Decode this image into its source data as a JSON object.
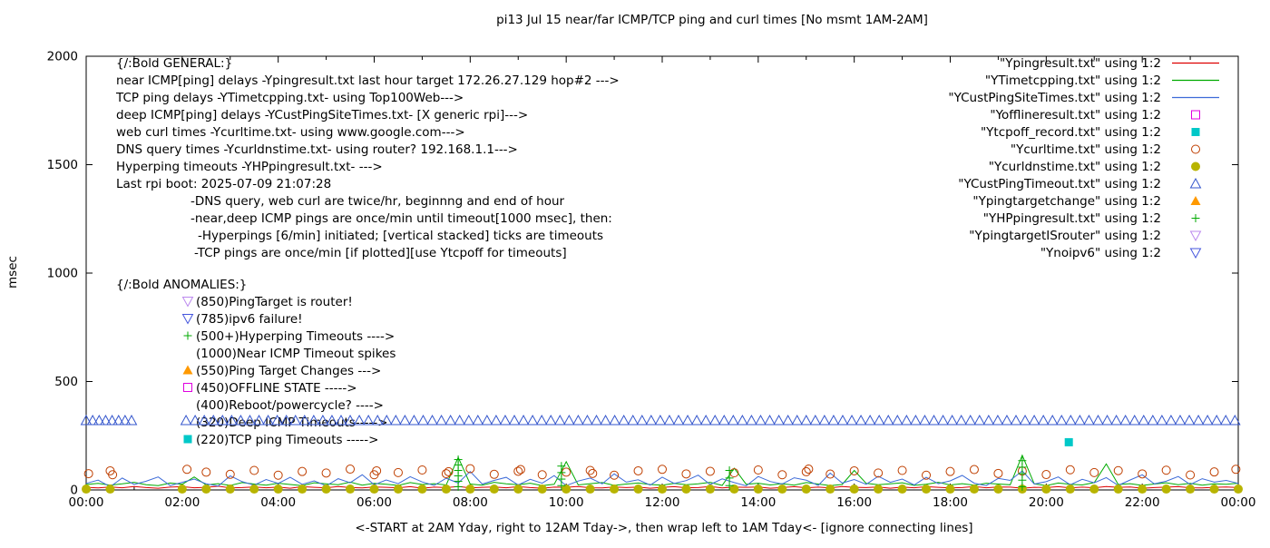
{
  "chart_data": {
    "type": "mixed",
    "title": "pi13 Jul 15  near/far ICMP/TCP ping and curl times [No msmt 1AM-2AM]",
    "xlabel": "<-START at 2AM Yday, right to 12AM Tday->, then wrap left to 1AM Tday<- [ignore connecting lines]",
    "ylabel": "msec",
    "xlim_hours": [
      0,
      24
    ],
    "ylim": [
      0,
      2000
    ],
    "y_ticks": [
      0,
      500,
      1000,
      1500,
      2000
    ],
    "x_tick_hours": [
      0,
      2,
      4,
      6,
      8,
      10,
      12,
      14,
      16,
      18,
      20,
      22,
      24
    ],
    "x_tick_labels": [
      "00:00",
      "02:00",
      "04:00",
      "06:00",
      "08:00",
      "10:00",
      "12:00",
      "14:00",
      "16:00",
      "18:00",
      "20:00",
      "22:00",
      "00:00"
    ],
    "grid": false,
    "legend_position": "top-right",
    "series": [
      {
        "name": "Ypingresult.txt",
        "type": "line",
        "color": "#dd0000",
        "values": [
          12,
          9,
          14,
          10,
          16,
          11,
          8,
          13,
          15,
          10,
          12,
          17,
          9,
          11,
          14,
          10,
          13,
          8,
          15,
          12,
          10,
          16,
          11,
          9,
          14,
          12,
          10,
          15,
          8,
          13,
          11,
          16,
          9,
          12,
          14,
          10,
          15,
          11,
          8,
          13,
          12,
          16,
          10,
          9,
          14,
          11,
          13,
          8,
          12,
          15,
          10,
          11,
          16,
          9,
          13,
          12,
          14,
          8,
          11,
          15,
          10,
          13,
          9,
          16,
          12,
          11,
          14,
          8,
          13,
          10,
          15,
          12,
          9,
          11,
          16,
          10,
          14,
          13,
          8,
          12,
          11,
          15,
          9,
          13,
          10,
          16,
          12,
          14,
          8,
          11,
          13,
          15,
          10,
          9,
          12,
          14,
          11
        ]
      },
      {
        "name": "YTimetcpping.txt",
        "type": "line",
        "color": "#00aa00",
        "values": [
          25,
          30,
          22,
          28,
          35,
          24,
          20,
          32,
          26,
          60,
          23,
          29,
          21,
          34,
          27,
          22,
          31,
          25,
          20,
          33,
          28,
          24,
          36,
          22,
          30,
          26,
          21,
          34,
          25,
          29,
          23,
          150,
          27,
          22,
          35,
          28,
          24,
          31,
          20,
          26,
          130,
          23,
          29,
          34,
          21,
          27,
          32,
          25,
          22,
          30,
          24,
          28,
          35,
          21,
          100,
          26,
          31,
          23,
          29,
          22,
          34,
          27,
          20,
          25,
          90,
          30,
          24,
          28,
          33,
          21,
          26,
          35,
          23,
          29,
          22,
          31,
          27,
          24,
          160,
          28,
          20,
          32,
          26,
          23,
          34,
          120,
          25,
          29,
          21,
          27,
          33,
          24,
          30,
          22,
          28,
          26,
          31
        ]
      },
      {
        "name": "YCustPingSiteTimes.txt",
        "type": "line",
        "color": "#3d6bd8",
        "values": [
          30,
          45,
          15,
          55,
          25,
          40,
          60,
          20,
          35,
          50,
          28,
          18,
          65,
          38,
          22,
          48,
          30,
          58,
          26,
          42,
          19,
          52,
          33,
          70,
          24,
          46,
          29,
          61,
          37,
          21,
          54,
          32,
          85,
          27,
          44,
          58,
          23,
          49,
          31,
          66,
          20,
          41,
          55,
          28,
          74,
          36,
          47,
          22,
          59,
          30,
          43,
          68,
          25,
          51,
          34,
          19,
          62,
          39,
          27,
          56,
          45,
          21,
          78,
          32,
          48,
          26,
          63,
          35,
          50,
          23,
          58,
          29,
          42,
          67,
          31,
          20,
          53,
          44,
          88,
          27,
          38,
          60,
          24,
          49,
          33,
          57,
          21,
          46,
          70,
          28,
          40,
          62,
          25,
          52,
          36,
          44,
          30
        ]
      },
      {
        "name": "Yofflineresult.txt",
        "type": "points",
        "marker": "square-open",
        "color": "#e000e0",
        "points": []
      },
      {
        "name": "Ytcpoff_record.txt",
        "type": "points",
        "marker": "square-filled",
        "color": "#00c8c8",
        "points": [
          [
            20.47,
            220
          ]
        ]
      },
      {
        "name": "Ycurltime.txt",
        "type": "points",
        "marker": "circle-open",
        "color": "#bf3f00",
        "points": [
          [
            0.05,
            75
          ],
          [
            0.5,
            88
          ],
          [
            0.55,
            70
          ],
          [
            2.1,
            95
          ],
          [
            2.5,
            82
          ],
          [
            3.0,
            72
          ],
          [
            3.5,
            90
          ],
          [
            4.0,
            68
          ],
          [
            4.5,
            85
          ],
          [
            5.0,
            78
          ],
          [
            5.5,
            96
          ],
          [
            6.0,
            70
          ],
          [
            6.05,
            88
          ],
          [
            6.5,
            80
          ],
          [
            7.0,
            92
          ],
          [
            7.5,
            75
          ],
          [
            7.55,
            84
          ],
          [
            8.0,
            98
          ],
          [
            8.5,
            72
          ],
          [
            9.0,
            86
          ],
          [
            9.05,
            94
          ],
          [
            9.5,
            70
          ],
          [
            10.0,
            82
          ],
          [
            10.5,
            90
          ],
          [
            10.55,
            76
          ],
          [
            11.0,
            68
          ],
          [
            11.5,
            88
          ],
          [
            12.0,
            95
          ],
          [
            12.5,
            74
          ],
          [
            13.0,
            86
          ],
          [
            13.5,
            79
          ],
          [
            14.0,
            92
          ],
          [
            14.5,
            70
          ],
          [
            15.0,
            84
          ],
          [
            15.05,
            96
          ],
          [
            15.5,
            73
          ],
          [
            16.0,
            88
          ],
          [
            16.5,
            78
          ],
          [
            17.0,
            90
          ],
          [
            17.5,
            68
          ],
          [
            18.0,
            85
          ],
          [
            18.5,
            94
          ],
          [
            19.0,
            76
          ],
          [
            19.5,
            87
          ],
          [
            20.0,
            71
          ],
          [
            20.5,
            93
          ],
          [
            21.0,
            80
          ],
          [
            21.5,
            89
          ],
          [
            22.0,
            74
          ],
          [
            22.5,
            91
          ],
          [
            23.0,
            69
          ],
          [
            23.5,
            83
          ],
          [
            23.95,
            95
          ]
        ]
      },
      {
        "name": "Ycurldnstime.txt",
        "type": "points",
        "marker": "circle-filled",
        "color": "#b8b400",
        "y": 4,
        "xs": [
          0,
          0.5,
          2,
          2.5,
          3,
          3.5,
          4,
          4.5,
          5,
          5.5,
          6,
          6.5,
          7,
          7.5,
          8,
          8.5,
          9,
          9.5,
          10,
          10.5,
          11,
          11.5,
          12,
          12.5,
          13,
          13.5,
          14,
          14.5,
          15,
          15.5,
          16,
          16.5,
          17,
          17.5,
          18,
          18.5,
          19,
          19.5,
          20,
          20.5,
          21,
          21.5,
          22,
          22.5,
          23,
          23.5,
          24
        ]
      },
      {
        "name": "YCustPingTimeout.txt",
        "type": "points",
        "marker": "triangle-up-open",
        "color": "#3355cc",
        "band": {
          "y": 320,
          "segments": [
            [
              0,
              0.95,
              0.135
            ],
            [
              2.08,
              23.96,
              0.19
            ]
          ]
        }
      },
      {
        "name": "Ypingtargetchange",
        "type": "points",
        "marker": "triangle-up-filled",
        "color": "#ff9900",
        "points": []
      },
      {
        "name": "YHPpingresult.txt",
        "type": "points",
        "marker": "plus",
        "color": "#00aa00",
        "points": [
          [
            7.75,
            15
          ],
          [
            7.75,
            40
          ],
          [
            7.75,
            65
          ],
          [
            7.75,
            90
          ],
          [
            7.75,
            115
          ],
          [
            7.75,
            140
          ],
          [
            9.9,
            20
          ],
          [
            9.9,
            50
          ],
          [
            9.9,
            80
          ],
          [
            9.9,
            110
          ],
          [
            13.4,
            20
          ],
          [
            13.4,
            55
          ],
          [
            13.4,
            90
          ],
          [
            19.5,
            15
          ],
          [
            19.5,
            45
          ],
          [
            19.5,
            75
          ],
          [
            19.5,
            105
          ],
          [
            19.5,
            135
          ]
        ]
      },
      {
        "name": "YpingtargetISrouter",
        "type": "points",
        "marker": "triangle-down-open",
        "color": "#bb88ee",
        "points": []
      },
      {
        "name": "Ynoipv6",
        "type": "points",
        "marker": "triangle-down-open",
        "color": "#4455dd",
        "points": []
      }
    ]
  },
  "legend": {
    "items": [
      {
        "label": "\"Ypingresult.txt\" using 1:2",
        "sample": "line",
        "color": "#dd0000"
      },
      {
        "label": "\"YTimetcpping.txt\" using 1:2",
        "sample": "line",
        "color": "#00aa00"
      },
      {
        "label": "\"YCustPingSiteTimes.txt\" using 1:2",
        "sample": "line",
        "color": "#3d6bd8"
      },
      {
        "label": "\"Yofflineresult.txt\" using 1:2",
        "sample": "square-open",
        "color": "#e000e0"
      },
      {
        "label": "\"Ytcpoff_record.txt\" using 1:2",
        "sample": "square-filled",
        "color": "#00c8c8"
      },
      {
        "label": "\"Ycurltime.txt\" using 1:2",
        "sample": "circle-open",
        "color": "#bf3f00"
      },
      {
        "label": "\"Ycurldnstime.txt\" using 1:2",
        "sample": "circle-filled",
        "color": "#b8b400"
      },
      {
        "label": "\"YCustPingTimeout.txt\" using 1:2",
        "sample": "triangle-up-open",
        "color": "#3355cc"
      },
      {
        "label": "\"Ypingtargetchange\" using 1:2",
        "sample": "triangle-up-filled",
        "color": "#ff9900"
      },
      {
        "label": "\"YHPpingresult.txt\" using 1:2",
        "sample": "plus",
        "color": "#00aa00"
      },
      {
        "label": "\"YpingtargetISrouter\" using 1:2",
        "sample": "triangle-down-open",
        "color": "#bb88ee"
      },
      {
        "label": "\"Ynoipv6\" using 1:2",
        "sample": "triangle-down-open",
        "color": "#4455dd"
      }
    ]
  },
  "annotations": {
    "general": [
      {
        "text": "{/:Bold GENERAL:}",
        "indent": 0
      },
      {
        "text": "near ICMP[ping] delays -Ypingresult.txt last hour target 172.26.27.129 hop#2 --->",
        "indent": 0
      },
      {
        "text": "TCP ping delays -YTimetcpping.txt- using Top100Web--->",
        "indent": 0
      },
      {
        "text": "deep ICMP[ping] delays -YCustPingSiteTimes.txt- [X generic rpi]--->",
        "indent": 0
      },
      {
        "text": "web curl times -Ycurltime.txt- using www.google.com--->",
        "indent": 0
      },
      {
        "text": "DNS query times -Ycurldnstime.txt- using router? 192.168.1.1--->",
        "indent": 0
      },
      {
        "text": "Hyperping timeouts -YHPpingresult.txt- --->",
        "indent": 0
      },
      {
        "text": "Last rpi boot: 2025-07-09 21:07:28",
        "indent": 0
      },
      {
        "text": "-DNS query, web curl are twice/hr, beginnng and end of hour",
        "indent": 82
      },
      {
        "text": "-near,deep ICMP pings are once/min until timeout[1000 msec], then:",
        "indent": 82
      },
      {
        "text": "-Hyperpings [6/min] initiated; [vertical stacked] ticks are timeouts",
        "indent": 90
      },
      {
        "text": "-TCP pings are once/min [if plotted][use Ytcpoff for timeouts]",
        "indent": 86
      }
    ],
    "anomalies_title": "{/:Bold ANOMALIES:}",
    "anomalies": [
      {
        "marker": "triangle-down-open",
        "color": "#bb88ee",
        "text": "(850)PingTarget is router!"
      },
      {
        "marker": "triangle-down-open",
        "color": "#4455dd",
        "text": "(785)ipv6 failure!"
      },
      {
        "marker": "plus",
        "color": "#00aa00",
        "text": "(500+)Hyperping Timeouts ---->"
      },
      {
        "marker": "none",
        "color": "",
        "text": "(1000)Near ICMP Timeout spikes"
      },
      {
        "marker": "triangle-up-filled",
        "color": "#ff9900",
        "text": "(550)Ping Target Changes --->"
      },
      {
        "marker": "square-open",
        "color": "#e000e0",
        "text": "(450)OFFLINE STATE ----->"
      },
      {
        "marker": "none",
        "color": "",
        "text": "(400)Reboot/powercycle? ---->"
      },
      {
        "marker": "none",
        "color": "",
        "text": "(320)Deep ICMP Timeouts----->"
      },
      {
        "marker": "square-filled",
        "color": "#00c8c8",
        "text": "(220)TCP ping Timeouts ----->"
      }
    ]
  }
}
